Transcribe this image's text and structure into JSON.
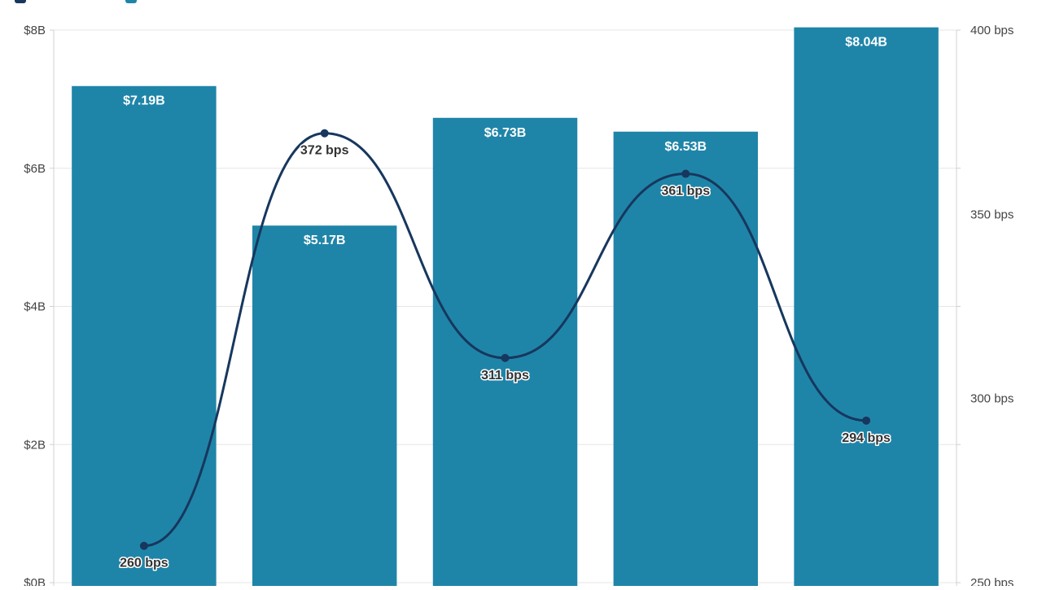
{
  "chart_data": {
    "type": "bar",
    "title": "",
    "categories": [
      "",
      "",
      "",
      "",
      ""
    ],
    "series": [
      {
        "type": "bar",
        "axis": "left",
        "color": "#1f85a8",
        "values": [
          7.19,
          5.17,
          6.73,
          6.53,
          8.04
        ],
        "labels": [
          "$7.19B",
          "$5.17B",
          "$6.73B",
          "$6.53B",
          "$8.04B"
        ]
      },
      {
        "type": "line",
        "axis": "right",
        "color": "#17375e",
        "smooth": true,
        "markers": true,
        "values": [
          260,
          372,
          311,
          361,
          294
        ],
        "labels": [
          "260 bps",
          "372 bps",
          "311 bps",
          "361 bps",
          "294 bps"
        ]
      }
    ],
    "y_left": {
      "ylim": [
        0,
        8
      ],
      "ticks": [
        0,
        2,
        4,
        6,
        8
      ],
      "tick_labels": [
        "$0B",
        "$2B",
        "$4B",
        "$6B",
        "$8B"
      ]
    },
    "y_right": {
      "ylim": [
        250,
        400
      ],
      "ticks": [
        250,
        300,
        350,
        400
      ],
      "tick_labels": [
        "250 bps",
        "300 bps",
        "350 bps",
        "400 bps"
      ]
    },
    "grid": true,
    "legend": {
      "position": "top-left",
      "colors": [
        "#17375e",
        "#1f85a8"
      ]
    }
  }
}
